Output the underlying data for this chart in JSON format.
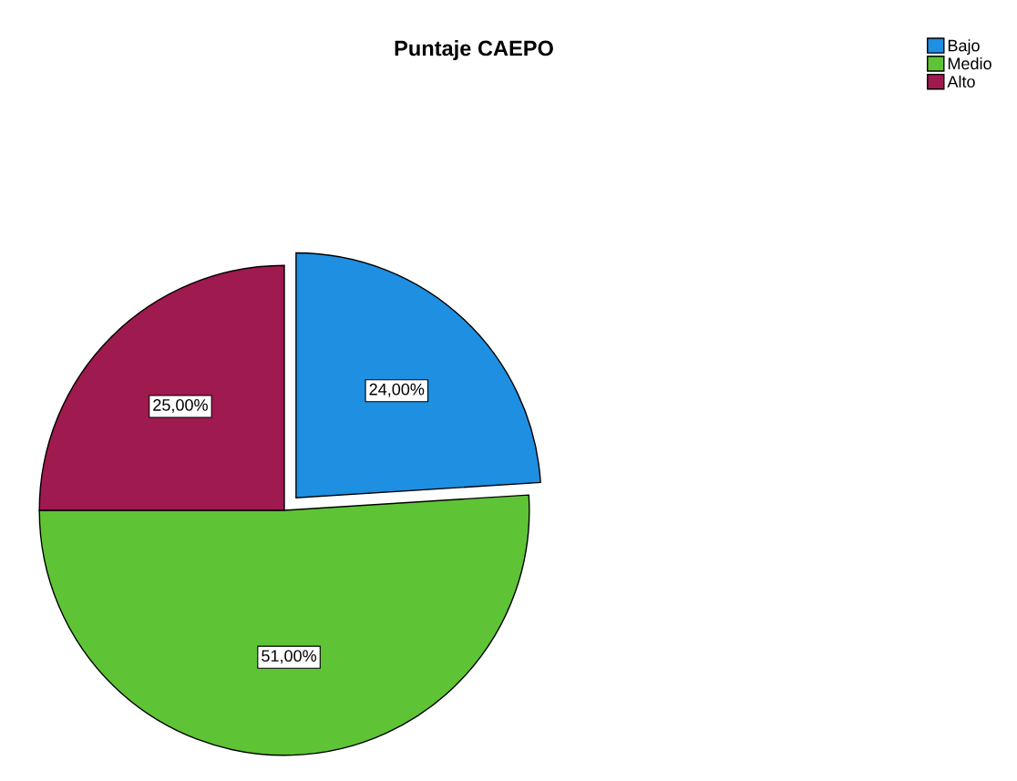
{
  "chart_data": {
    "type": "pie",
    "title": "Puntaje CAEPO",
    "categories": [
      "Bajo",
      "Medio",
      "Alto"
    ],
    "values": [
      24,
      51,
      25
    ],
    "colors": [
      "#1e8fe1",
      "#5ec435",
      "#9e1a4f"
    ],
    "value_labels": [
      "24,00%",
      "51,00%",
      "25,00%"
    ],
    "legend": "top right"
  }
}
